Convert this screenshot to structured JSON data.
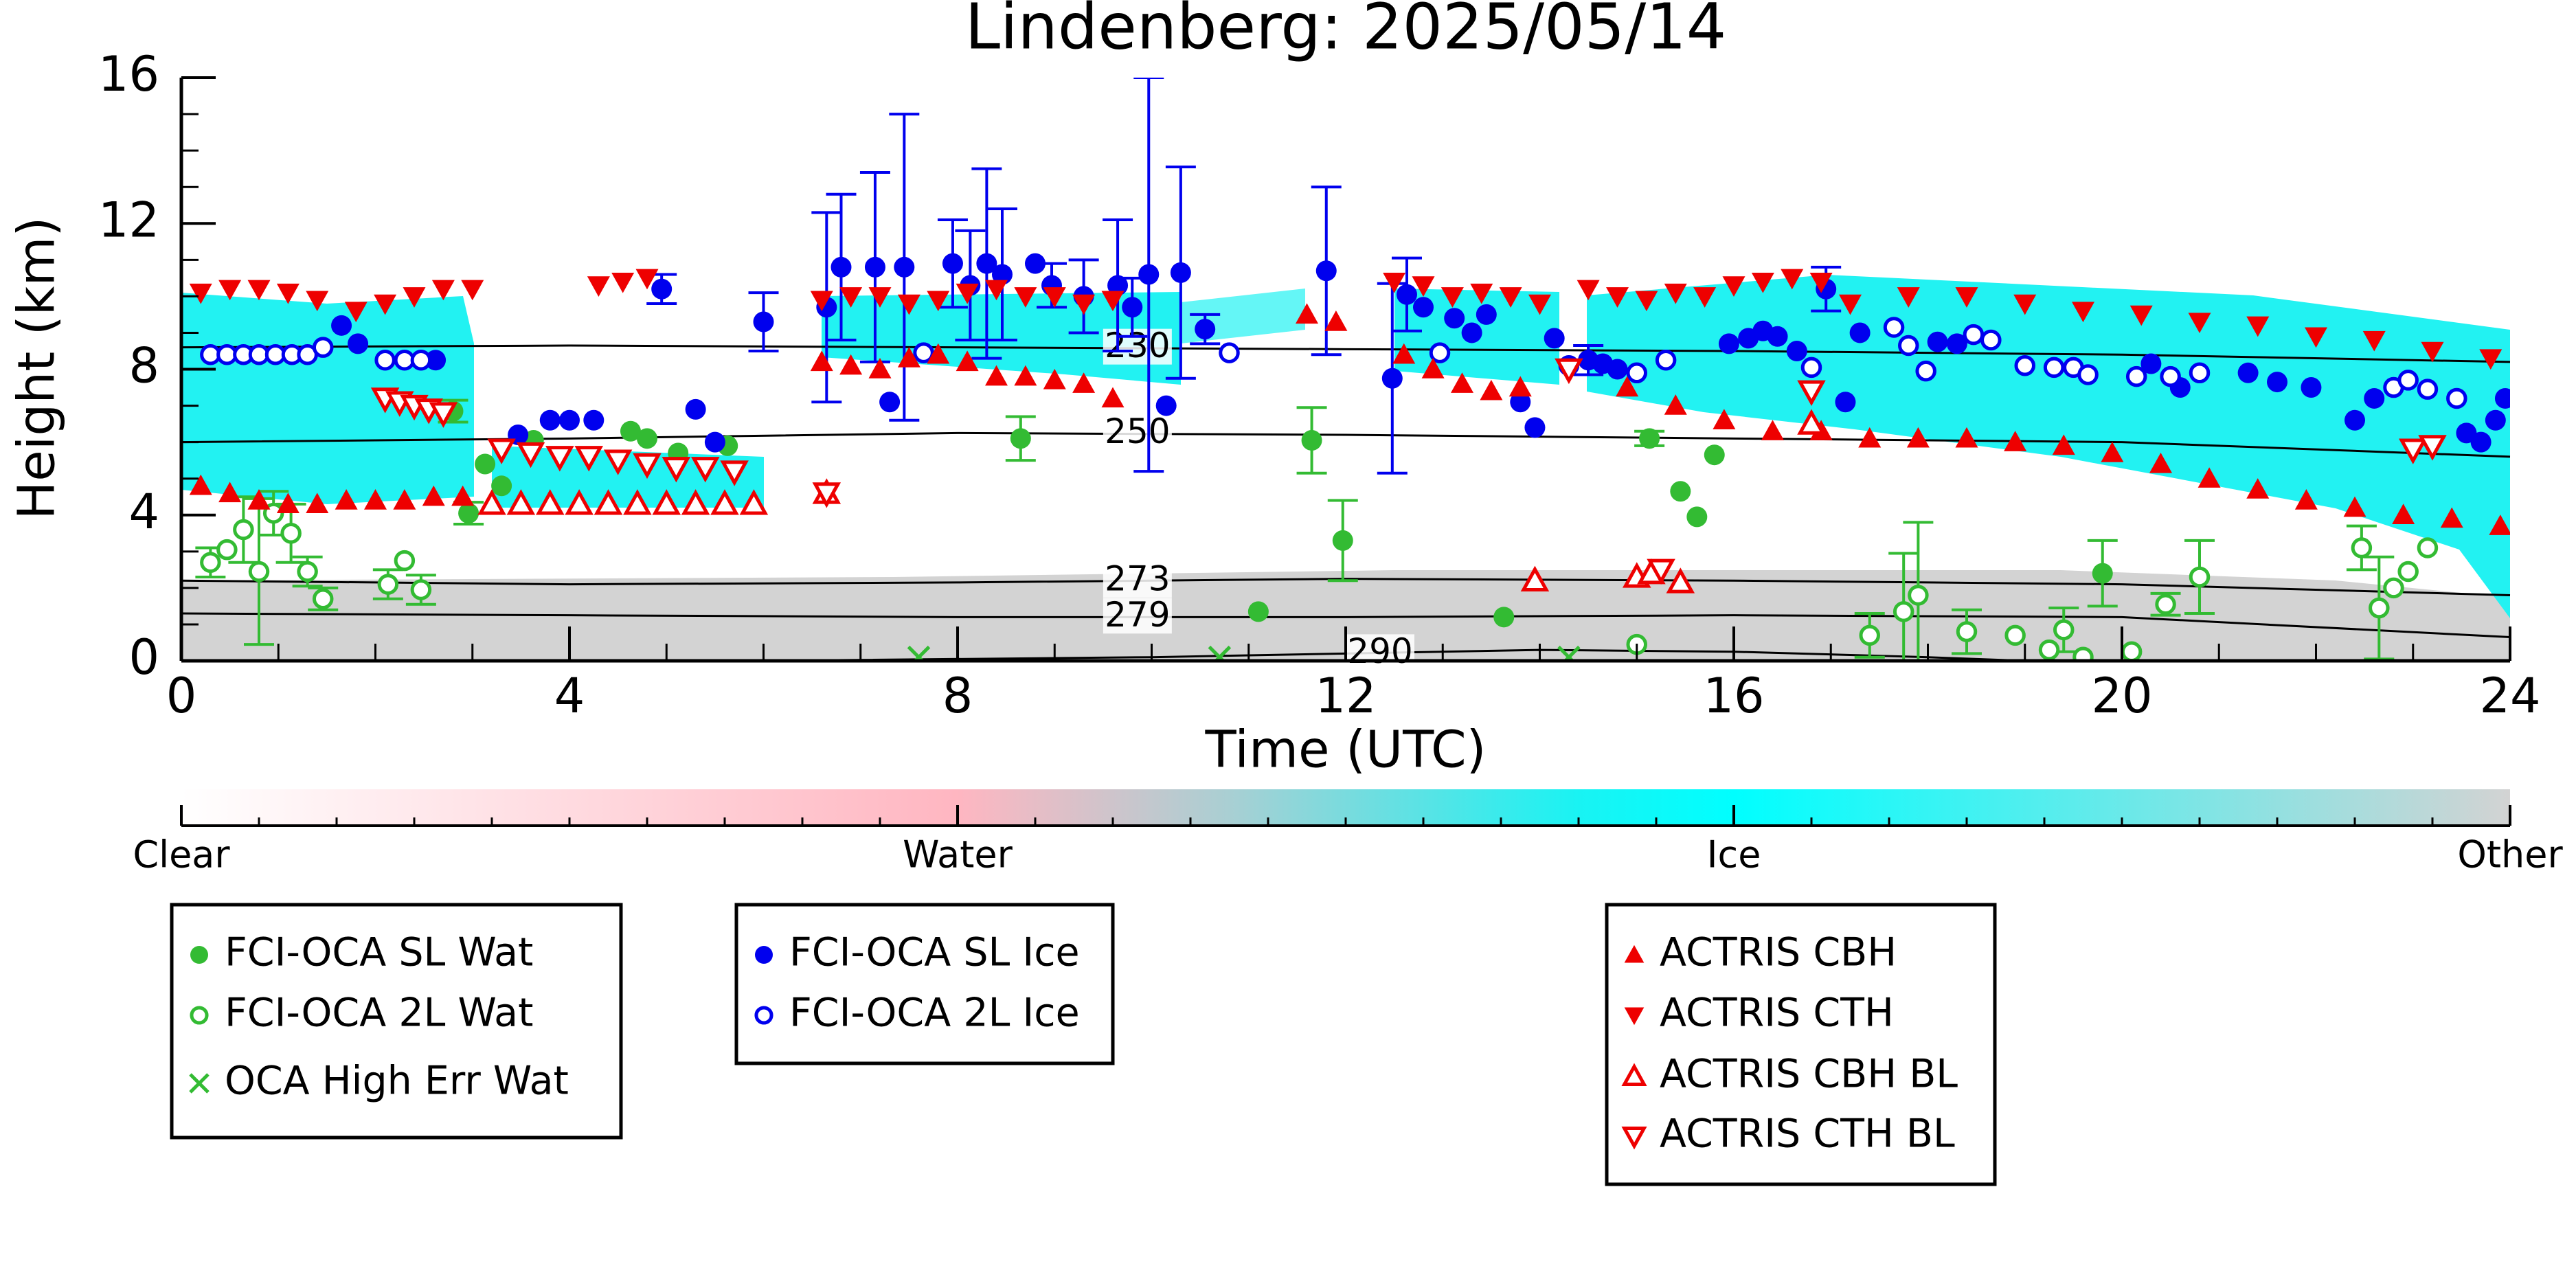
{
  "chart_data": {
    "type": "scatter",
    "title": "Lindenberg: 2025/05/14",
    "xlabel": "Time (UTC)",
    "ylabel": "Height (km)",
    "xlim": [
      0,
      24
    ],
    "ylim": [
      0,
      16
    ],
    "xticks": [
      0,
      4,
      8,
      12,
      16,
      20,
      24
    ],
    "yticks": [
      0,
      4,
      8,
      12,
      16
    ],
    "series": [
      {
        "name": "FCI-OCA SL Wat",
        "color": "#33bb33",
        "marker": "circle",
        "x": [
          2.8,
          2.96,
          3.13,
          3.3,
          3.63,
          4.63,
          4.8,
          5.12,
          5.63,
          8.65,
          11.65,
          11.97,
          11.1,
          13.63,
          15.13,
          15.45,
          15.62,
          15.8,
          19.8
        ],
        "values": [
          6.85,
          4.05,
          5.4,
          4.8,
          6.05,
          6.3,
          6.1,
          5.7,
          5.9,
          6.1,
          6.05,
          3.3,
          1.35,
          1.2,
          6.1,
          4.65,
          3.95,
          5.65,
          2.4
        ],
        "err": [
          0.3,
          0.3,
          null,
          null,
          null,
          null,
          null,
          null,
          null,
          0.6,
          0.9,
          1.1,
          null,
          null,
          0.2,
          null,
          null,
          null,
          0.9
        ]
      },
      {
        "name": "FCI-OCA 2L Wat",
        "color": "#33bb33",
        "marker": "circle-open",
        "x": [
          0.3,
          0.47,
          0.64,
          0.8,
          0.95,
          1.13,
          1.3,
          1.46,
          2.13,
          2.3,
          2.47,
          15.0,
          17.4,
          17.75,
          17.9,
          18.4,
          18.9,
          19.25,
          19.4,
          19.6,
          20.1,
          20.45,
          20.8,
          22.47,
          22.65,
          22.8,
          22.95,
          23.15
        ],
        "values": [
          2.7,
          3.05,
          3.6,
          2.45,
          4.05,
          3.5,
          2.45,
          1.7,
          2.1,
          2.75,
          1.95,
          0.45,
          0.7,
          1.35,
          1.8,
          0.8,
          0.7,
          0.3,
          0.85,
          0.1,
          0.25,
          1.55,
          2.3,
          3.1,
          1.45,
          2.0,
          2.45,
          3.1
        ],
        "err": [
          0.4,
          null,
          0.9,
          2.0,
          0.6,
          0.8,
          0.4,
          0.3,
          0.4,
          null,
          0.4,
          null,
          0.6,
          1.6,
          2.0,
          0.6,
          null,
          null,
          0.6,
          null,
          null,
          0.3,
          1.0,
          0.6,
          1.4,
          null,
          null,
          null
        ]
      },
      {
        "name": "OCA High Err Wat",
        "color": "#33bb33",
        "marker": "x",
        "x": [
          7.6,
          10.7,
          14.3
        ],
        "values": [
          0.1,
          0.1,
          0.1
        ]
      },
      {
        "name": "FCI-OCA SL Ice",
        "color": "#0000ee",
        "marker": "circle",
        "x": [
          1.65,
          1.82,
          2.62,
          3.47,
          3.8,
          4.0,
          4.25,
          4.95,
          5.3,
          5.5,
          6.0,
          6.65,
          6.8,
          7.15,
          7.45,
          7.3,
          7.95,
          8.13,
          8.3,
          8.46,
          8.8,
          8.97,
          9.3,
          9.65,
          9.8,
          9.97,
          10.15,
          10.3,
          10.55,
          11.8,
          12.48,
          12.63,
          12.8,
          13.12,
          13.3,
          13.45,
          13.8,
          13.95,
          14.15,
          14.5,
          14.65,
          14.8,
          15.95,
          16.15,
          16.3,
          16.45,
          16.65,
          16.95,
          17.15,
          17.3,
          18.1,
          18.3,
          20.3,
          20.6,
          21.3,
          21.6,
          21.95,
          22.4,
          22.6,
          23.55,
          23.7,
          23.95,
          23.85
        ],
        "values": [
          9.2,
          8.7,
          8.25,
          6.2,
          6.6,
          6.6,
          6.6,
          10.2,
          6.9,
          6.0,
          9.3,
          9.7,
          10.8,
          10.8,
          10.8,
          7.1,
          10.9,
          10.3,
          10.9,
          10.6,
          10.9,
          10.3,
          10.0,
          10.3,
          9.7,
          10.6,
          7.0,
          10.65,
          9.1,
          10.7,
          7.75,
          10.05,
          9.7,
          9.4,
          9.0,
          9.5,
          7.1,
          6.4,
          8.85,
          8.25,
          8.15,
          8.0,
          8.7,
          8.85,
          9.05,
          8.9,
          8.5,
          10.2,
          7.1,
          9.0,
          8.75,
          8.7,
          8.15,
          7.5,
          7.9,
          7.65,
          7.5,
          6.6,
          7.2,
          6.25,
          6.0,
          7.2,
          6.6
        ],
        "err": [
          null,
          null,
          null,
          null,
          null,
          null,
          null,
          0.4,
          null,
          null,
          0.8,
          2.6,
          2.0,
          2.6,
          4.2,
          null,
          1.2,
          1.5,
          2.6,
          1.8,
          null,
          0.6,
          1.0,
          1.8,
          0.8,
          5.4,
          null,
          2.9,
          0.4,
          2.3,
          2.6,
          1.0,
          null,
          null,
          null,
          null,
          null,
          null,
          null,
          0.4,
          null,
          null,
          null,
          null,
          null,
          null,
          null,
          0.6,
          null,
          null,
          null,
          null,
          null,
          null,
          null,
          null,
          null,
          null,
          null,
          null,
          null,
          null,
          null
        ]
      },
      {
        "name": "FCI-OCA 2L Ice",
        "color": "#0000ee",
        "marker": "circle-open",
        "x": [
          0.3,
          0.47,
          0.64,
          0.8,
          0.97,
          1.14,
          1.3,
          1.46,
          2.1,
          2.3,
          2.47,
          7.65,
          10.8,
          12.97,
          14.3,
          15.0,
          15.3,
          16.8,
          17.65,
          17.8,
          17.98,
          18.47,
          18.65,
          19.0,
          19.3,
          19.5,
          19.65,
          20.15,
          20.5,
          20.8,
          22.8,
          22.95,
          23.15,
          23.45
        ],
        "values": [
          8.4,
          8.4,
          8.4,
          8.4,
          8.4,
          8.4,
          8.4,
          8.6,
          8.25,
          8.25,
          8.25,
          8.45,
          8.45,
          8.45,
          8.1,
          7.9,
          8.25,
          8.05,
          9.15,
          8.65,
          7.95,
          8.95,
          8.8,
          8.1,
          8.05,
          8.05,
          7.85,
          7.8,
          7.8,
          7.9,
          7.5,
          7.7,
          7.45,
          7.2
        ]
      },
      {
        "name": "ACTRIS CBH",
        "color": "#ee0000",
        "marker": "triangle-up",
        "x": [
          0.2,
          0.5,
          0.8,
          1.1,
          1.4,
          1.7,
          2.0,
          2.3,
          2.6,
          2.9,
          6.6,
          6.9,
          7.2,
          7.5,
          7.8,
          8.1,
          8.4,
          8.7,
          9.0,
          9.3,
          9.6,
          11.6,
          11.9,
          12.6,
          12.9,
          13.2,
          13.5,
          13.8,
          14.9,
          15.4,
          15.9,
          16.4,
          16.9,
          17.4,
          17.9,
          18.4,
          18.9,
          19.4,
          19.9,
          20.4,
          20.9,
          21.4,
          21.9,
          22.4,
          22.9,
          23.4,
          23.9
        ],
        "values": [
          4.8,
          4.6,
          4.4,
          4.3,
          4.3,
          4.4,
          4.4,
          4.4,
          4.5,
          4.5,
          8.2,
          8.1,
          8.0,
          8.3,
          8.4,
          8.2,
          7.8,
          7.8,
          7.7,
          7.6,
          7.2,
          9.5,
          9.3,
          8.4,
          8.0,
          7.6,
          7.4,
          7.5,
          7.5,
          7.0,
          6.6,
          6.3,
          6.3,
          6.1,
          6.1,
          6.1,
          6.0,
          5.9,
          5.7,
          5.4,
          5.0,
          4.7,
          4.4,
          4.2,
          4.0,
          3.9,
          3.7
        ]
      },
      {
        "name": "ACTRIS CTH",
        "color": "#ee0000",
        "marker": "triangle-down",
        "x": [
          0.2,
          0.5,
          0.8,
          1.1,
          1.4,
          1.8,
          2.1,
          2.4,
          2.7,
          3.0,
          4.3,
          4.55,
          4.8,
          6.6,
          6.9,
          7.2,
          7.5,
          7.8,
          8.1,
          8.4,
          8.7,
          9.0,
          9.3,
          9.6,
          12.5,
          12.8,
          13.1,
          13.4,
          13.7,
          14.0,
          14.5,
          14.8,
          15.1,
          15.4,
          15.7,
          16.0,
          16.3,
          16.6,
          16.9,
          17.2,
          17.8,
          18.4,
          19.0,
          19.6,
          20.2,
          20.8,
          21.4,
          22.0,
          22.6,
          23.2,
          23.8
        ],
        "values": [
          10.1,
          10.2,
          10.2,
          10.1,
          9.9,
          9.6,
          9.8,
          10.0,
          10.2,
          10.2,
          10.3,
          10.4,
          10.5,
          9.9,
          10.0,
          10.0,
          9.8,
          9.9,
          10.1,
          10.2,
          10.0,
          10.0,
          9.8,
          9.9,
          10.4,
          10.3,
          10.0,
          10.1,
          10.0,
          9.8,
          10.2,
          10.0,
          9.9,
          10.1,
          10.0,
          10.3,
          10.4,
          10.5,
          10.4,
          9.8,
          10.0,
          10.0,
          9.8,
          9.6,
          9.5,
          9.3,
          9.2,
          8.9,
          8.8,
          8.5,
          8.3
        ]
      },
      {
        "name": "ACTRIS CBH BL",
        "color": "#ee0000",
        "marker": "triangle-up-open",
        "x": [
          3.2,
          3.5,
          3.8,
          4.1,
          4.4,
          4.7,
          5.0,
          5.3,
          5.6,
          5.9,
          6.65,
          13.95,
          15.0,
          15.15,
          15.45,
          16.8
        ],
        "values": [
          4.3,
          4.3,
          4.3,
          4.3,
          4.3,
          4.3,
          4.3,
          4.3,
          4.3,
          4.3,
          4.6,
          2.2,
          2.3,
          2.4,
          2.15,
          6.5
        ]
      },
      {
        "name": "ACTRIS CTH BL",
        "color": "#ee0000",
        "marker": "triangle-down-open",
        "x": [
          2.1,
          2.25,
          2.4,
          2.55,
          2.7,
          3.3,
          3.6,
          3.9,
          4.2,
          4.5,
          4.8,
          5.1,
          5.4,
          5.7,
          6.65,
          14.3,
          15.25,
          16.8,
          23.0,
          23.2
        ],
        "values": [
          7.2,
          7.1,
          7.0,
          6.9,
          6.8,
          5.8,
          5.7,
          5.6,
          5.6,
          5.5,
          5.4,
          5.3,
          5.3,
          5.2,
          4.6,
          8.0,
          2.5,
          7.4,
          5.8,
          5.9
        ]
      }
    ],
    "isotherms": [
      {
        "level": 230,
        "x": [
          0,
          4,
          8,
          12,
          16,
          20,
          24
        ],
        "values": [
          8.6,
          8.65,
          8.6,
          8.55,
          8.5,
          8.4,
          8.2
        ]
      },
      {
        "level": 250,
        "x": [
          0,
          4,
          8,
          12,
          16,
          20,
          24
        ],
        "values": [
          6.0,
          6.1,
          6.25,
          6.2,
          6.1,
          6.0,
          5.6
        ]
      },
      {
        "level": 273,
        "x": [
          0,
          2,
          4,
          8,
          12,
          16,
          20,
          24
        ],
        "values": [
          2.2,
          2.15,
          2.1,
          2.15,
          2.25,
          2.2,
          2.1,
          1.8
        ]
      },
      {
        "level": 279,
        "x": [
          0,
          4,
          8,
          12,
          16,
          20,
          24
        ],
        "values": [
          1.3,
          1.25,
          1.2,
          1.2,
          1.25,
          1.2,
          0.65
        ]
      },
      {
        "level": 290,
        "x": [
          6,
          10,
          12,
          14,
          16,
          18,
          19
        ],
        "values": [
          0,
          0.1,
          0.2,
          0.3,
          0.25,
          0.1,
          0
        ]
      }
    ],
    "colorbar": {
      "labels": [
        "Clear",
        "Water",
        "Ice",
        "Other"
      ]
    }
  }
}
